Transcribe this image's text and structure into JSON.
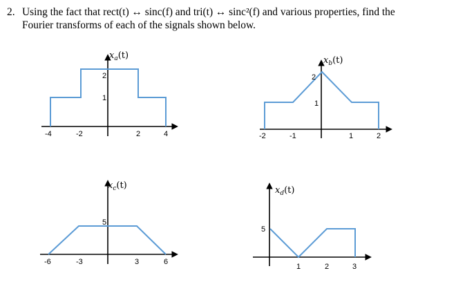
{
  "problem": {
    "number": "2.",
    "line1": "Using the fact that rect(t) ↔ sinc(f) and tri(t) ↔ sinc²(f) and various properties, find the",
    "line2": "Fourier transforms of each of the signals shown below."
  },
  "plots": [
    {
      "id": "a",
      "label": "x",
      "sub": "a",
      "arg": "(t)",
      "x_ticks": [
        "-4",
        "-2",
        "2",
        "4"
      ],
      "y_ticks": [
        "1",
        "2"
      ],
      "signal": {
        "type": "piecewise",
        "points": [
          [
            -4,
            0
          ],
          [
            -4,
            1
          ],
          [
            -2,
            1
          ],
          [
            -2,
            2
          ],
          [
            2,
            2
          ],
          [
            2,
            1
          ],
          [
            4,
            1
          ],
          [
            4,
            0
          ]
        ]
      }
    },
    {
      "id": "b",
      "label": "x",
      "sub": "b",
      "arg": "(t)",
      "x_ticks": [
        "-2",
        "-1",
        "1",
        "2"
      ],
      "y_ticks": [
        "1",
        "2"
      ],
      "signal": {
        "type": "piecewise",
        "points": [
          [
            -2,
            0
          ],
          [
            -2,
            1
          ],
          [
            -1,
            1
          ],
          [
            0,
            2
          ],
          [
            1,
            1
          ],
          [
            2,
            1
          ],
          [
            2,
            0
          ]
        ]
      }
    },
    {
      "id": "c",
      "label": "x",
      "sub": "c",
      "arg": "(t)",
      "x_ticks": [
        "-6",
        "-3",
        "3",
        "6"
      ],
      "y_ticks": [
        "5"
      ],
      "signal": {
        "type": "piecewise",
        "points": [
          [
            -6,
            0
          ],
          [
            -3,
            5
          ],
          [
            3,
            5
          ],
          [
            6,
            0
          ]
        ]
      }
    },
    {
      "id": "d",
      "label": "x",
      "sub": "d",
      "arg": "(t)",
      "x_ticks": [
        "1",
        "2",
        "3"
      ],
      "y_ticks": [
        "5"
      ],
      "signal": {
        "type": "piecewise",
        "points": [
          [
            0,
            5
          ],
          [
            1,
            0
          ],
          [
            2,
            5
          ],
          [
            3,
            5
          ],
          [
            3,
            0
          ]
        ]
      }
    }
  ]
}
